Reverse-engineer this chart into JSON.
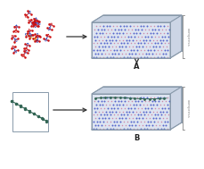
{
  "fig_width": 2.29,
  "fig_height": 1.89,
  "dpi": 100,
  "bg_color": "#ffffff",
  "panel_A_label": "A",
  "panel_B_label": "B",
  "compress_label": "compress",
  "arrow_color": "#333333",
  "box_edge_color": "#8899aa",
  "tkx50_blue": "#2244bb",
  "tkx50_red": "#cc1111",
  "tkx50_yellow": "#ddaa00",
  "polymer_color": "#336655",
  "dot_blue": "#5566cc",
  "dot_pink": "#cc88aa",
  "box_face": "#dde4f0",
  "box_top": "#c5d0e0",
  "box_right": "#ccd5e5"
}
